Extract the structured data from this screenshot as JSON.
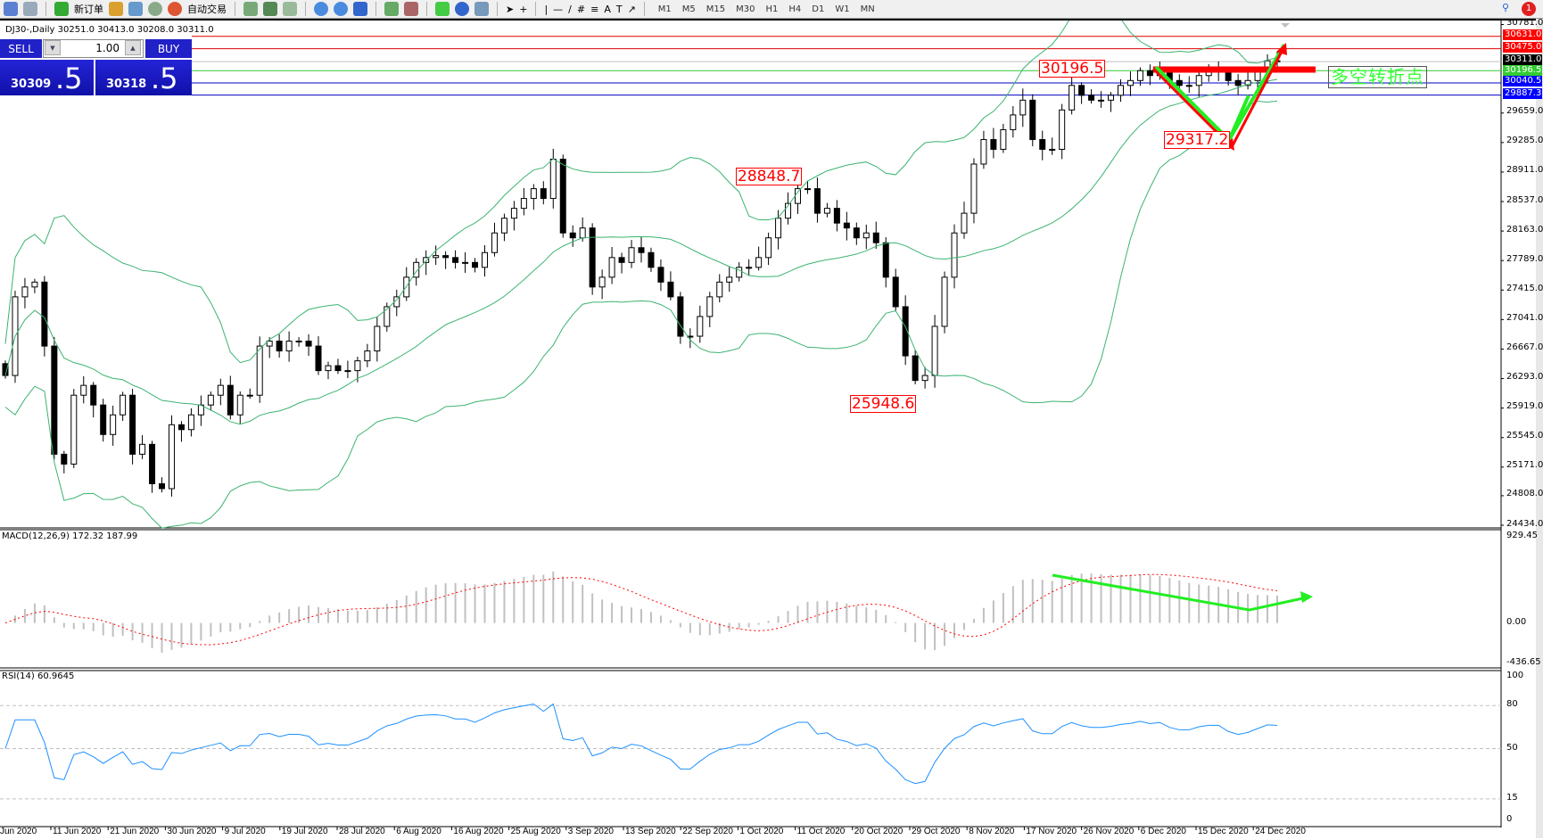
{
  "toolbar": {
    "new_order": "新订单",
    "auto_trading": "自动交易",
    "timeframes": [
      "M1",
      "M5",
      "M15",
      "M30",
      "H1",
      "H4",
      "D1",
      "W1",
      "MN"
    ],
    "notification_count": "1"
  },
  "chart": {
    "title": "DJ30-,Daily  30251.0 30413.0 30208.0 30311.0"
  },
  "trade_panel": {
    "sell_label": "SELL",
    "buy_label": "BUY",
    "lot": "1.00",
    "sell_price_main": "30309",
    "sell_price_frac": ".5",
    "buy_price_main": "30318",
    "buy_price_frac": ".5"
  },
  "price_levels": [
    {
      "value": "30631.0",
      "color": "#ff0000",
      "line": "#e00000"
    },
    {
      "value": "30475.0",
      "color": "#ff0000",
      "line": "#e00000"
    },
    {
      "value": "30311.0",
      "color": "#000000",
      "line": "#c0c0c0"
    },
    {
      "value": "30196.5",
      "color": "#33cc33",
      "line": "#33cc33"
    },
    {
      "value": "30040.5",
      "color": "#0000ff",
      "line": "#0000c0"
    },
    {
      "value": "29887.3",
      "color": "#0000ff",
      "line": "#0000c0"
    }
  ],
  "annotations": {
    "a1": "30196.5",
    "a2": "29317.2",
    "a3": "28848.7",
    "a4": "25948.6",
    "turn_text": "多空转折点"
  },
  "indicators": {
    "macd_label": "MACD(12,26,9) 172.32 187.99",
    "rsi_label": "RSI(14) 60.9645"
  },
  "chart_data": {
    "type": "candlestick",
    "symbol": "DJ30-",
    "timeframe": "Daily",
    "ylim": [
      24434.0,
      30781.0
    ],
    "y_ticks": [
      "30781.0",
      "29659.0",
      "29285.0",
      "28911.0",
      "28537.0",
      "28163.0",
      "27789.0",
      "27415.0",
      "27041.0",
      "26667.0",
      "26293.0",
      "25919.0",
      "25545.0",
      "25171.0",
      "24808.0",
      "24434.0"
    ],
    "x_ticks": [
      "Jun 2020",
      "11 Jun 2020",
      "21 Jun 2020",
      "30 Jun 2020",
      "9 Jul 2020",
      "19 Jul 2020",
      "28 Jul 2020",
      "6 Aug 2020",
      "16 Aug 2020",
      "25 Aug 2020",
      "3 Sep 2020",
      "13 Sep 2020",
      "22 Sep 2020",
      "1 Oct 2020",
      "11 Oct 2020",
      "20 Oct 2020",
      "29 Oct 2020",
      "8 Nov 2020",
      "17 Nov 2020",
      "26 Nov 2020",
      "6 Dec 2020",
      "15 Dec 2020",
      "24 Dec 2020"
    ],
    "closes": [
      26332,
      27329,
      27454,
      27516,
      26705,
      25334,
      25209,
      26082,
      26207,
      25958,
      25584,
      25833,
      26082,
      25334,
      25459,
      24960,
      24898,
      25708,
      25646,
      25833,
      25958,
      26082,
      26207,
      25833,
      26082,
      26082,
      26705,
      26768,
      26643,
      26768,
      26768,
      26705,
      26394,
      26456,
      26394,
      26394,
      26518,
      26643,
      26955,
      27204,
      27329,
      27578,
      27765,
      27827,
      27852,
      27827,
      27765,
      27765,
      27703,
      27890,
      28139,
      28326,
      28451,
      28576,
      28700,
      28576,
      29074,
      28139,
      28077,
      28202,
      27454,
      27578,
      27827,
      27765,
      27952,
      27890,
      27703,
      27516,
      27329,
      26830,
      26830,
      27080,
      27329,
      27516,
      27578,
      27703,
      27703,
      27827,
      28077,
      28326,
      28513,
      28700,
      28700,
      28389,
      28451,
      28264,
      28202,
      28077,
      28139,
      28015,
      27578,
      27204,
      26581,
      26269,
      26332,
      26955,
      27578,
      28139,
      28389,
      29012,
      29323,
      29199,
      29448,
      29635,
      29822,
      29323,
      29199,
      29199,
      29698,
      30009,
      29884,
      29822,
      29822,
      29884,
      30009,
      30071,
      30196,
      30134,
      30196,
      30071,
      30009,
      30009,
      30134,
      30196,
      30196,
      30071,
      30009,
      30071,
      30196,
      30321,
      30311
    ],
    "overlays": [
      "Bollinger Bands (green)"
    ],
    "macd": {
      "ylim": [
        -436.65,
        929.45
      ],
      "ticks": [
        "929.45",
        "0.00",
        "-436.65"
      ]
    },
    "rsi": {
      "ylim": [
        0,
        100
      ],
      "ticks": [
        "100",
        "80",
        "50",
        "15",
        "0"
      ],
      "levels": [
        80,
        50,
        15
      ],
      "line_color": "#1e90ff"
    }
  }
}
